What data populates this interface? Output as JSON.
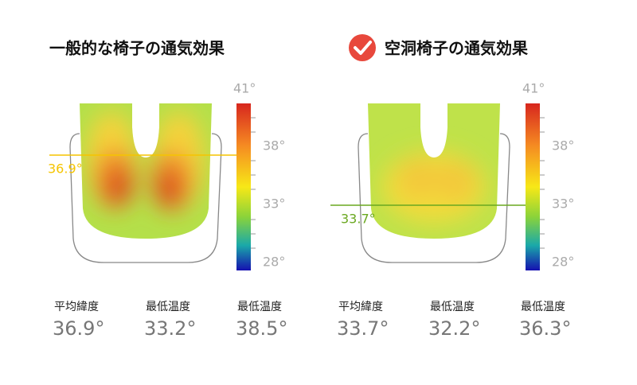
{
  "panels": [
    {
      "title": "一般的な椅子の通気効果",
      "scale_labels": [
        "41°",
        "38°",
        "33°",
        "28°"
      ],
      "marker_label": "36.9°",
      "stats": [
        {
          "label": "平均緯度",
          "value": "36.9°"
        },
        {
          "label": "最低温度",
          "value": "33.2°"
        },
        {
          "label": "最低温度",
          "value": "38.5°"
        }
      ]
    },
    {
      "title": "空洞椅子の通気効果",
      "scale_labels": [
        "41°",
        "38°",
        "33°",
        "28°"
      ],
      "marker_label": "33.7°",
      "stats": [
        {
          "label": "平均緯度",
          "value": "33.7°"
        },
        {
          "label": "最低温度",
          "value": "32.2°"
        },
        {
          "label": "最低温度",
          "value": "36.3°"
        }
      ]
    }
  ]
}
